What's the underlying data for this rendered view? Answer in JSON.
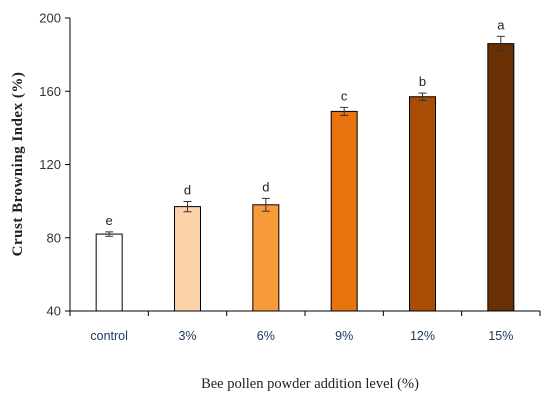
{
  "chart_data": {
    "type": "bar",
    "categories": [
      "control",
      "3%",
      "6%",
      "9%",
      "12%",
      "15%"
    ],
    "values": [
      82,
      97,
      98,
      149,
      157,
      186
    ],
    "errors": [
      1.2,
      2.8,
      3.5,
      2.2,
      2.0,
      4.0
    ],
    "significance_letters": [
      "e",
      "d",
      "d",
      "c",
      "b",
      "a"
    ],
    "bar_colors": [
      "#ffffff",
      "#fcd2a8",
      "#f79a3a",
      "#e87410",
      "#a84c06",
      "#6a3005"
    ],
    "xlabel": "Bee pollen powder addition level (%)",
    "ylabel": "Crust Browning Index (%)",
    "ylim": [
      40,
      200
    ],
    "yticks": [
      40,
      80,
      120,
      160,
      200
    ],
    "grid": false
  }
}
